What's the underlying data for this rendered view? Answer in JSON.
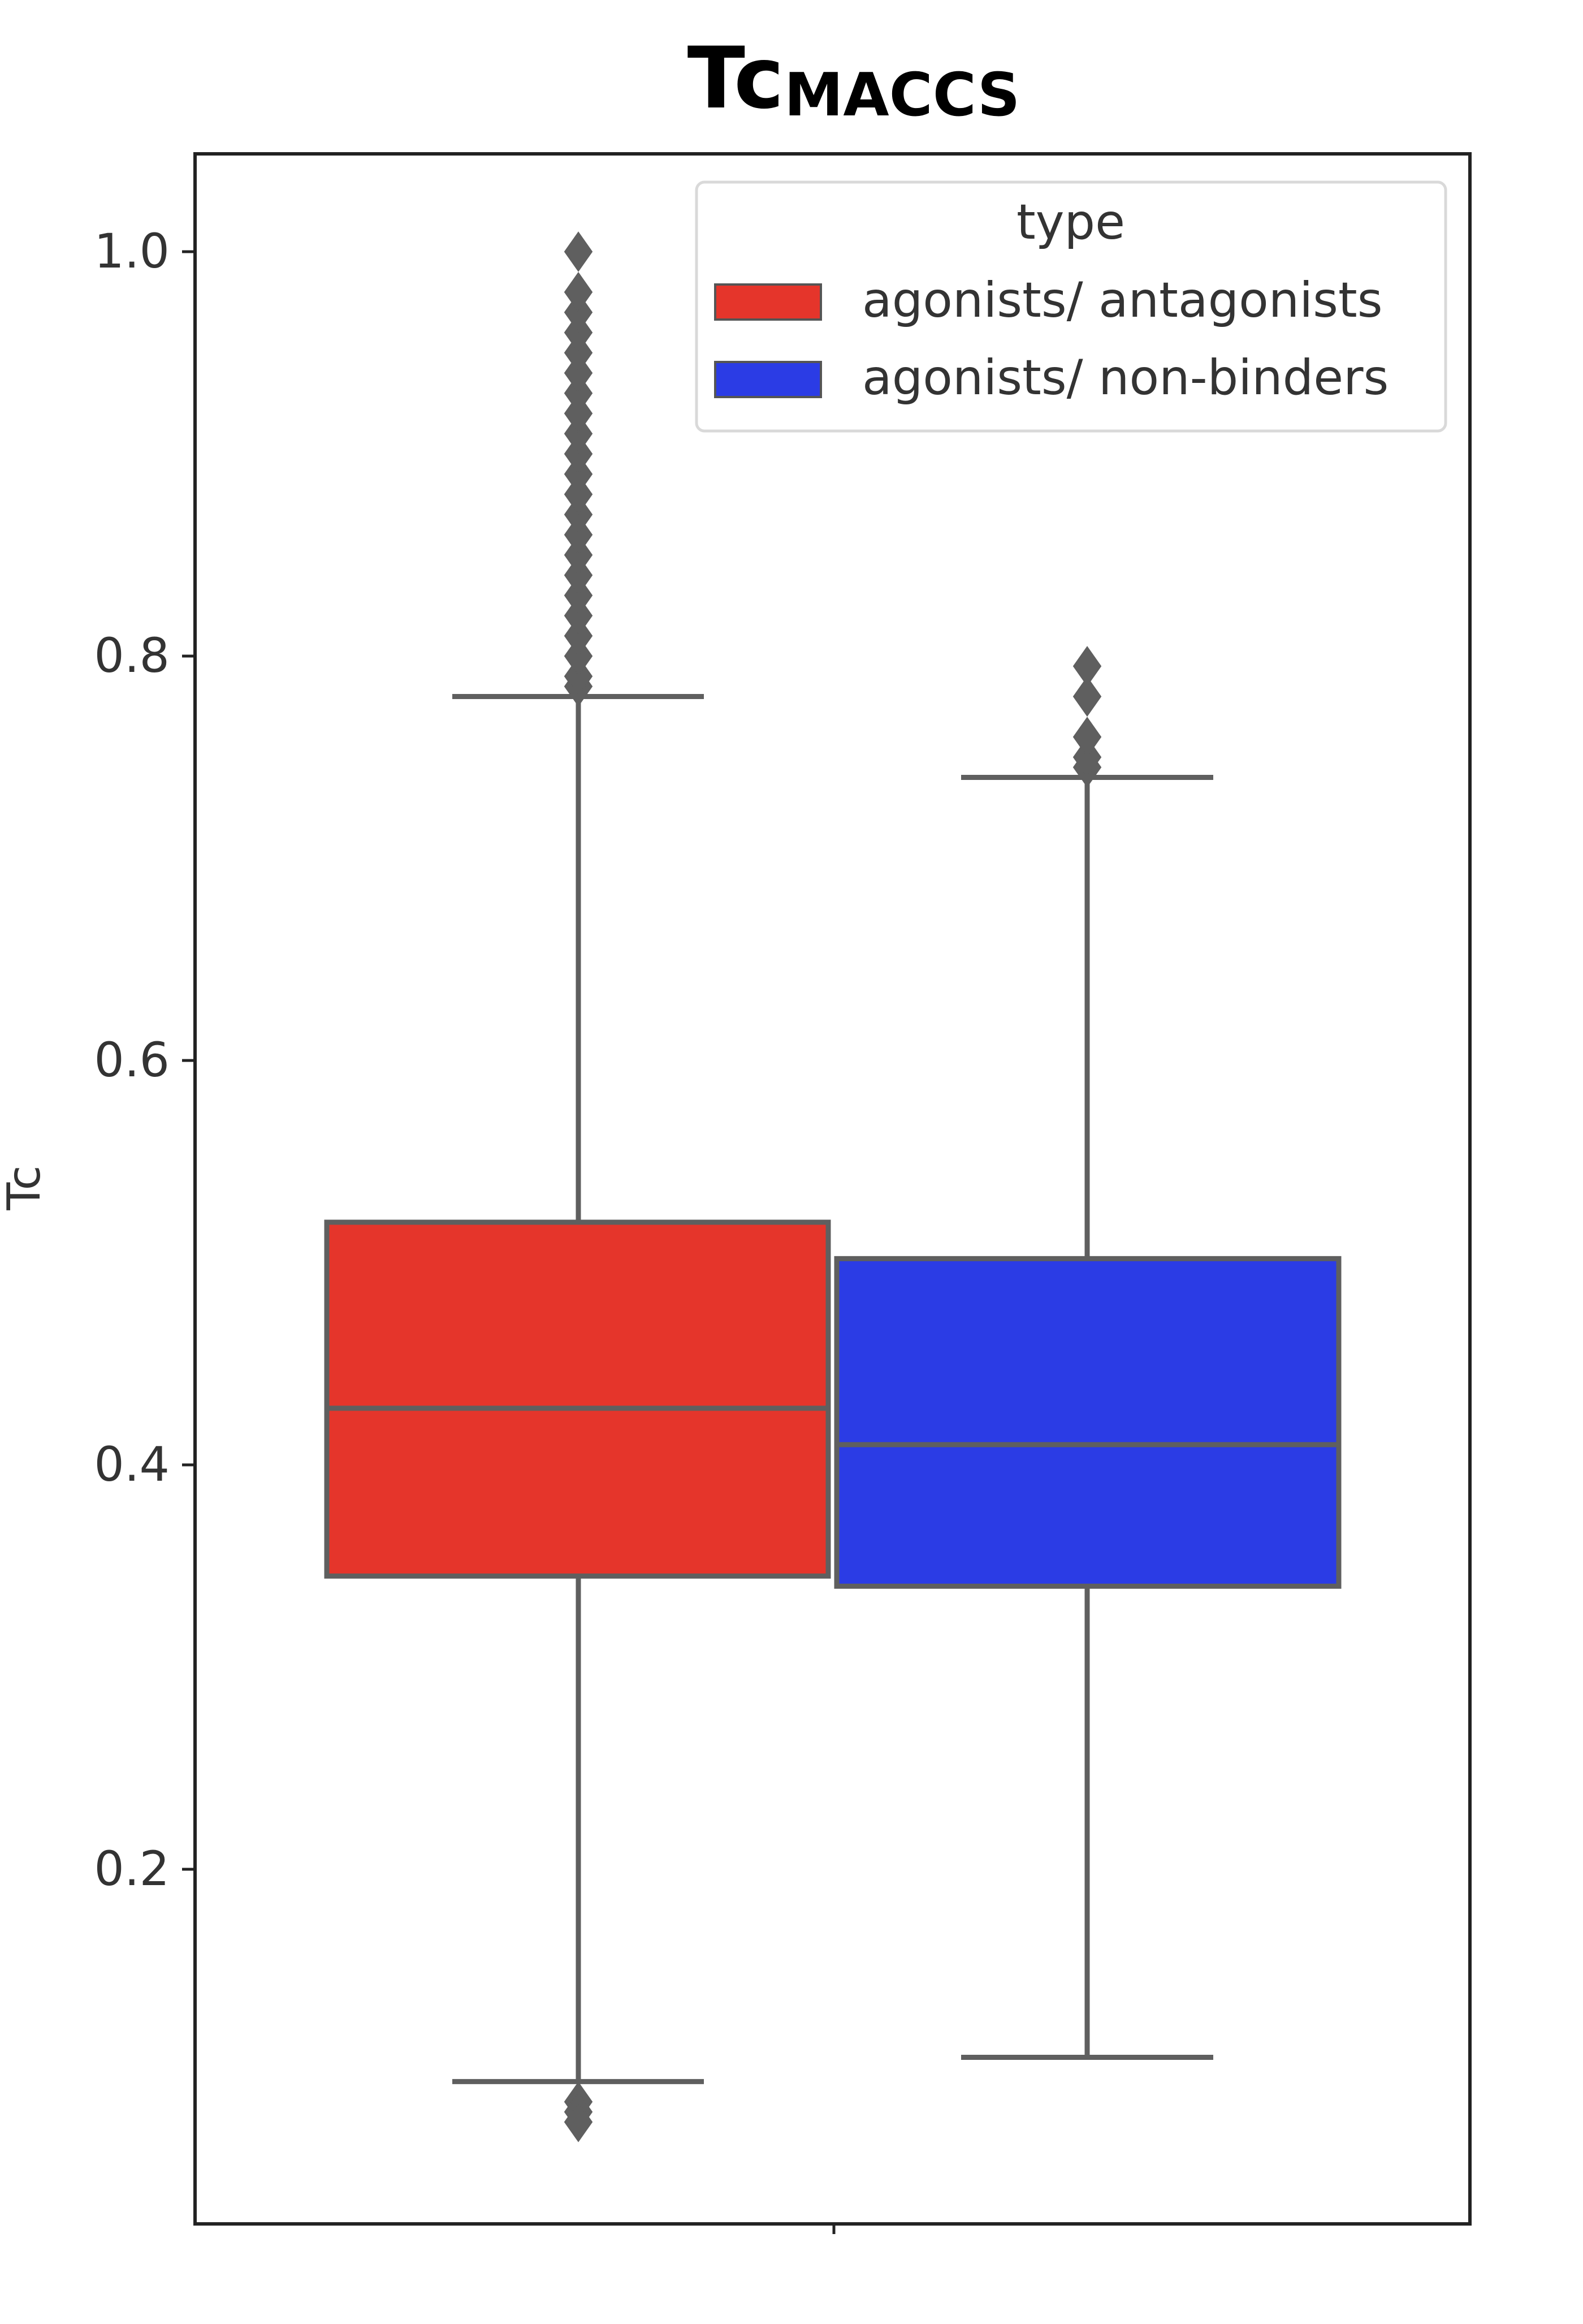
{
  "chart_data": {
    "type": "box",
    "title": "Tc",
    "title_subscript": "MACCS",
    "xlabel": "",
    "ylabel": "Tc",
    "ylim": [
      0.05,
      1.05
    ],
    "yticks": [
      0.2,
      0.4,
      0.6,
      0.8,
      1.0
    ],
    "ytick_labels": [
      "0.2",
      "0.4",
      "0.6",
      "0.8",
      "1.0"
    ],
    "grid": false,
    "legend": {
      "title": "type",
      "placement": "top-right",
      "entries": [
        "agonists/ antagonists",
        "agonists/ non-binders"
      ]
    },
    "series": [
      {
        "name": "agonists/ antagonists",
        "color": "#e5352b",
        "whisker_low": 0.095,
        "q1": 0.345,
        "median": 0.428,
        "q3": 0.52,
        "whisker_high": 0.78,
        "outliers_high": [
          0.785,
          0.79,
          0.8,
          0.81,
          0.82,
          0.83,
          0.84,
          0.85,
          0.86,
          0.87,
          0.88,
          0.89,
          0.9,
          0.91,
          0.92,
          0.93,
          0.94,
          0.95,
          0.96,
          0.97,
          0.98,
          1.0
        ],
        "outliers_low": [
          0.085,
          0.08,
          0.075
        ]
      },
      {
        "name": "agonists/ non-binders",
        "color": "#2b3ce5",
        "whisker_low": 0.107,
        "q1": 0.34,
        "median": 0.41,
        "q3": 0.502,
        "whisker_high": 0.74,
        "outliers_high": [
          0.745,
          0.75,
          0.76,
          0.78,
          0.795
        ],
        "outliers_low": []
      }
    ]
  }
}
